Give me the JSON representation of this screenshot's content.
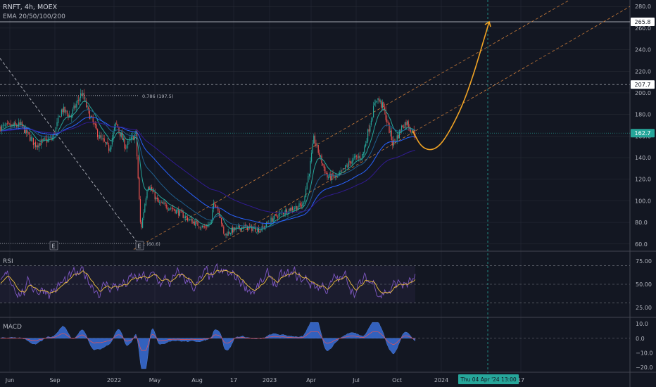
{
  "header": {
    "symbol": "RNFT, 4h, MOEX",
    "indicator": "EMA 20/50/100/200"
  },
  "colors": {
    "background": "#131722",
    "grid": "#2a2e39",
    "up": "#26a69a",
    "down": "#ef5350",
    "ema20": "#26a69a",
    "ema50": "#1f5e8c",
    "ema100": "#2962ff",
    "ema200": "#311b92",
    "projection": "#f0a325",
    "fib": "#b2b5be",
    "rsi_line": "#7e57c2",
    "rsi_ma": "#f0c040",
    "macd_up": "#3a6fd8",
    "crosshair": "#26a69a",
    "text": "#b2b5be"
  },
  "chart_data": [
    {
      "type": "candlestick",
      "panel": "price",
      "title": "RNFT, 4h, MOEX",
      "legend": [
        "EMA 20/50/100/200"
      ],
      "x_ticks": [
        "Jun",
        "Sep",
        "2022",
        "May",
        "Aug",
        "17",
        "2023",
        "Apr",
        "Jul",
        "Oct",
        "2024",
        "17"
      ],
      "y_ticks": [
        60,
        80,
        100,
        120,
        140,
        160,
        180,
        200,
        220,
        240,
        260,
        280
      ],
      "ylim": [
        54,
        286
      ],
      "price_labels": [
        {
          "label": "265.8",
          "value": 265.8
        },
        {
          "label": "207.7",
          "value": 207.7
        },
        {
          "label": "162.7",
          "value": 162.7
        }
      ],
      "fib_levels": [
        {
          "label": "0.786 (197.5)",
          "value": 197.5
        },
        {
          "label": "1 (60.6)",
          "value": 60.6
        }
      ],
      "event_markers": [
        "E",
        "E"
      ],
      "crosshair_label": "Thu 04 Apr '24   13:00",
      "price_path": [
        {
          "x": 0,
          "y": 168
        },
        {
          "x": 30,
          "y": 170
        },
        {
          "x": 50,
          "y": 152
        },
        {
          "x": 75,
          "y": 158
        },
        {
          "x": 88,
          "y": 185
        },
        {
          "x": 100,
          "y": 178
        },
        {
          "x": 116,
          "y": 200
        },
        {
          "x": 125,
          "y": 183
        },
        {
          "x": 140,
          "y": 160
        },
        {
          "x": 155,
          "y": 148
        },
        {
          "x": 165,
          "y": 172
        },
        {
          "x": 178,
          "y": 150
        },
        {
          "x": 193,
          "y": 162
        },
        {
          "x": 200,
          "y": 72
        },
        {
          "x": 210,
          "y": 116
        },
        {
          "x": 225,
          "y": 98
        },
        {
          "x": 245,
          "y": 93
        },
        {
          "x": 270,
          "y": 82
        },
        {
          "x": 290,
          "y": 75
        },
        {
          "x": 300,
          "y": 80
        },
        {
          "x": 304,
          "y": 101
        },
        {
          "x": 313,
          "y": 86
        },
        {
          "x": 318,
          "y": 68
        },
        {
          "x": 328,
          "y": 72
        },
        {
          "x": 345,
          "y": 76
        },
        {
          "x": 370,
          "y": 73
        },
        {
          "x": 390,
          "y": 85
        },
        {
          "x": 410,
          "y": 92
        },
        {
          "x": 430,
          "y": 96
        },
        {
          "x": 440,
          "y": 130
        },
        {
          "x": 446,
          "y": 158
        },
        {
          "x": 455,
          "y": 140
        },
        {
          "x": 465,
          "y": 122
        },
        {
          "x": 480,
          "y": 122
        },
        {
          "x": 500,
          "y": 138
        },
        {
          "x": 515,
          "y": 142
        },
        {
          "x": 528,
          "y": 178
        },
        {
          "x": 535,
          "y": 196
        },
        {
          "x": 545,
          "y": 186
        },
        {
          "x": 552,
          "y": 168
        },
        {
          "x": 558,
          "y": 153
        },
        {
          "x": 565,
          "y": 160
        },
        {
          "x": 572,
          "y": 170
        },
        {
          "x": 578,
          "y": 173
        },
        {
          "x": 585,
          "y": 165
        },
        {
          "x": 590,
          "y": 162.7
        }
      ],
      "projection_path": [
        {
          "x": 586,
          "y": 165
        },
        {
          "x": 600,
          "y": 148
        },
        {
          "x": 620,
          "y": 147
        },
        {
          "x": 640,
          "y": 165
        },
        {
          "x": 665,
          "y": 200
        },
        {
          "x": 695,
          "y": 265.8
        }
      ]
    },
    {
      "type": "line",
      "panel": "rsi",
      "title": "RSI",
      "y_ticks": [
        25,
        50,
        75
      ],
      "ylim": [
        15,
        85
      ],
      "bands": [
        30,
        50,
        70
      ]
    },
    {
      "type": "area",
      "panel": "macd",
      "title": "MACD",
      "y_ticks": [
        -20,
        -10,
        0,
        10
      ],
      "tick_labels": [
        "−20.0",
        "−10.0",
        "0.0",
        "10.0"
      ],
      "ylim": [
        -23,
        14
      ]
    }
  ]
}
